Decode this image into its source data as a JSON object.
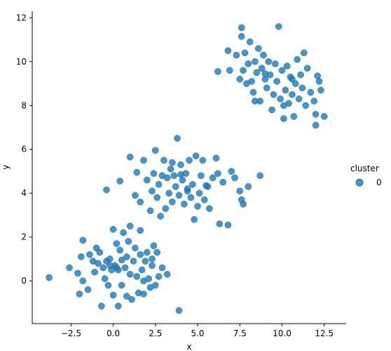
{
  "chart_data": {
    "type": "scatter",
    "xlabel": "x",
    "ylabel": "y",
    "xlim": [
      -4.8,
      13.8
    ],
    "ylim": [
      -1.95,
      12.3
    ],
    "xticks": [
      -2.5,
      0.0,
      2.5,
      5.0,
      7.5,
      10.0,
      12.5
    ],
    "xtick_labels": [
      "−2.5",
      "0.0",
      "2.5",
      "5.0",
      "7.5",
      "10.0",
      "12.5"
    ],
    "yticks": [
      0,
      2,
      4,
      6,
      8,
      10,
      12
    ],
    "ytick_labels": [
      "0",
      "2",
      "4",
      "6",
      "8",
      "10",
      "12"
    ],
    "grid": false,
    "legend": {
      "title": "cluster",
      "placement": "right",
      "entries": [
        {
          "label": "0",
          "color": "#1f77b4"
        }
      ]
    },
    "series": [
      {
        "name": "0",
        "color": "#1f77b4",
        "points": [
          [
            -3.8,
            0.15
          ],
          [
            -2.6,
            0.6
          ],
          [
            -2.1,
            0.35
          ],
          [
            -2.0,
            -0.6
          ],
          [
            -1.9,
            1.1
          ],
          [
            -1.8,
            1.85
          ],
          [
            -1.8,
            0.0
          ],
          [
            -1.5,
            -0.4
          ],
          [
            -1.4,
            1.2
          ],
          [
            -1.2,
            0.9
          ],
          [
            -1.1,
            0.4
          ],
          [
            -1.0,
            1.5
          ],
          [
            -0.9,
            0.8
          ],
          [
            -0.8,
            1.3
          ],
          [
            -0.7,
            -1.15
          ],
          [
            -0.6,
            0.6
          ],
          [
            -0.5,
            0.1
          ],
          [
            -0.4,
            0.9
          ],
          [
            -0.3,
            -0.2
          ],
          [
            -0.2,
            1.0
          ],
          [
            -0.1,
            0.5
          ],
          [
            0.0,
            -0.65
          ],
          [
            0.0,
            2.35
          ],
          [
            0.1,
            0.7
          ],
          [
            0.2,
            1.7
          ],
          [
            0.3,
            0.5
          ],
          [
            0.3,
            -1.15
          ],
          [
            0.4,
            1.4
          ],
          [
            0.5,
            0.95
          ],
          [
            0.5,
            -0.2
          ],
          [
            0.6,
            2.2
          ],
          [
            0.7,
            0.6
          ],
          [
            0.8,
            -0.7
          ],
          [
            0.8,
            1.1
          ],
          [
            0.9,
            1.8
          ],
          [
            1.0,
            0.3
          ],
          [
            1.0,
            2.5
          ],
          [
            1.1,
            -0.85
          ],
          [
            1.2,
            0.9
          ],
          [
            1.3,
            1.5
          ],
          [
            1.4,
            0.2
          ],
          [
            1.5,
            -0.55
          ],
          [
            1.6,
            1.2
          ],
          [
            1.6,
            2.3
          ],
          [
            1.7,
            0.5
          ],
          [
            1.8,
            -0.6
          ],
          [
            1.9,
            0.9
          ],
          [
            2.0,
            1.3
          ],
          [
            2.1,
            0.1
          ],
          [
            2.2,
            -0.3
          ],
          [
            2.3,
            0.7
          ],
          [
            2.4,
            1.6
          ],
          [
            2.5,
            -0.2
          ],
          [
            2.6,
            1.3
          ],
          [
            2.7,
            0.2
          ],
          [
            2.9,
            0.6
          ],
          [
            3.2,
            0.3
          ],
          [
            3.9,
            -1.35
          ],
          [
            0.2,
            0.6
          ],
          [
            -0.2,
            0.7
          ],
          [
            1.8,
            0.0
          ],
          [
            2.3,
            1.0
          ],
          [
            -0.4,
            4.15
          ],
          [
            0.4,
            4.55
          ],
          [
            1.0,
            5.65
          ],
          [
            1.3,
            3.9
          ],
          [
            1.4,
            4.95
          ],
          [
            1.6,
            3.6
          ],
          [
            1.8,
            5.5
          ],
          [
            2.0,
            4.6
          ],
          [
            2.2,
            3.2
          ],
          [
            2.3,
            4.1
          ],
          [
            2.4,
            4.9
          ],
          [
            2.5,
            5.95
          ],
          [
            2.6,
            3.8
          ],
          [
            2.7,
            4.4
          ],
          [
            2.8,
            2.95
          ],
          [
            2.9,
            4.8
          ],
          [
            3.0,
            5.5
          ],
          [
            3.1,
            3.3
          ],
          [
            3.2,
            4.7
          ],
          [
            3.3,
            4.0
          ],
          [
            3.4,
            5.1
          ],
          [
            3.5,
            3.6
          ],
          [
            3.6,
            4.8
          ],
          [
            3.7,
            4.3
          ],
          [
            3.8,
            6.5
          ],
          [
            3.9,
            3.9
          ],
          [
            4.0,
            5.3
          ],
          [
            4.1,
            4.6
          ],
          [
            4.2,
            3.5
          ],
          [
            4.3,
            4.9
          ],
          [
            4.4,
            4.1
          ],
          [
            4.5,
            5.5
          ],
          [
            4.6,
            3.8
          ],
          [
            4.7,
            4.4
          ],
          [
            4.8,
            2.8
          ],
          [
            4.9,
            5.7
          ],
          [
            5.0,
            3.4
          ],
          [
            5.1,
            4.0
          ],
          [
            5.2,
            4.8
          ],
          [
            5.3,
            5.5
          ],
          [
            5.4,
            3.7
          ],
          [
            5.5,
            4.35
          ],
          [
            5.6,
            4.3
          ],
          [
            5.7,
            3.3
          ],
          [
            5.9,
            4.7
          ],
          [
            6.1,
            5.6
          ],
          [
            6.2,
            4.9
          ],
          [
            6.3,
            2.6
          ],
          [
            6.5,
            4.5
          ],
          [
            6.8,
            2.55
          ],
          [
            7.0,
            5.0
          ],
          [
            7.2,
            4.7
          ],
          [
            7.5,
            4.1
          ],
          [
            7.6,
            3.7
          ],
          [
            7.7,
            3.5
          ],
          [
            8.0,
            4.3
          ],
          [
            8.7,
            4.8
          ],
          [
            3.5,
            5.4
          ],
          [
            4.0,
            4.85
          ],
          [
            4.4,
            4.2
          ],
          [
            6.2,
            9.55
          ],
          [
            6.8,
            10.5
          ],
          [
            6.9,
            9.6
          ],
          [
            7.3,
            10.3
          ],
          [
            7.5,
            9.2
          ],
          [
            7.6,
            11.55
          ],
          [
            7.6,
            11.15
          ],
          [
            7.7,
            9.6
          ],
          [
            7.8,
            10.4
          ],
          [
            7.9,
            9.0
          ],
          [
            8.0,
            9.9
          ],
          [
            8.1,
            10.9
          ],
          [
            8.2,
            9.1
          ],
          [
            8.3,
            8.6
          ],
          [
            8.4,
            10.0
          ],
          [
            8.5,
            9.5
          ],
          [
            8.6,
            10.6
          ],
          [
            8.7,
            8.2
          ],
          [
            8.8,
            9.7
          ],
          [
            8.9,
            10.3
          ],
          [
            9.0,
            9.2
          ],
          [
            9.1,
            8.8
          ],
          [
            9.2,
            10.0
          ],
          [
            9.3,
            9.4
          ],
          [
            9.4,
            7.8
          ],
          [
            9.5,
            8.5
          ],
          [
            9.6,
            9.9
          ],
          [
            9.7,
            9.1
          ],
          [
            9.8,
            11.6
          ],
          [
            9.9,
            8.3
          ],
          [
            10.0,
            9.6
          ],
          [
            10.1,
            7.4
          ],
          [
            10.2,
            8.7
          ],
          [
            10.3,
            9.8
          ],
          [
            10.4,
            8.1
          ],
          [
            10.5,
            9.3
          ],
          [
            10.6,
            8.5
          ],
          [
            10.7,
            7.5
          ],
          [
            10.8,
            9.0
          ],
          [
            10.9,
            10.1
          ],
          [
            11.0,
            8.3
          ],
          [
            11.1,
            9.4
          ],
          [
            11.2,
            8.8
          ],
          [
            11.3,
            10.4
          ],
          [
            11.4,
            8.0
          ],
          [
            11.5,
            9.7
          ],
          [
            11.7,
            8.6
          ],
          [
            11.9,
            8.2
          ],
          [
            12.0,
            7.1
          ],
          [
            12.0,
            7.6
          ],
          [
            12.1,
            9.35
          ],
          [
            12.2,
            9.1
          ],
          [
            12.3,
            8.7
          ],
          [
            12.5,
            7.5
          ],
          [
            8.4,
            8.2
          ],
          [
            10.1,
            8.0
          ],
          [
            9.0,
            9.45
          ],
          [
            10.6,
            9.2
          ]
        ]
      }
    ]
  }
}
